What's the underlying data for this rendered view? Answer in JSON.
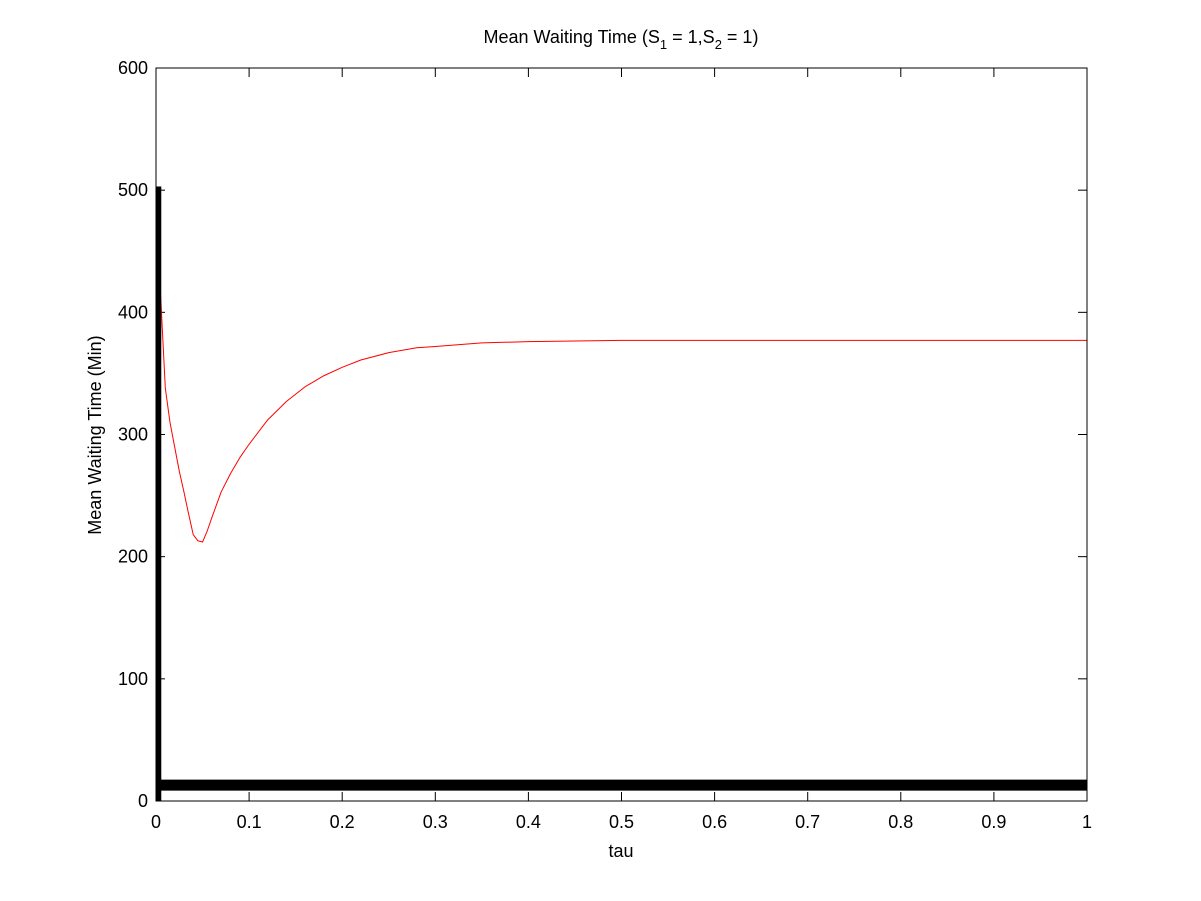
{
  "chart_data": {
    "type": "line",
    "title_parts": {
      "prefix": "Mean Waiting Time (S",
      "sub1": "1",
      "middle": " = 1,S",
      "sub2": "2",
      "suffix": " = 1)"
    },
    "xlabel": "tau",
    "ylabel": "Mean Waiting Time (Min)",
    "xlim": [
      0,
      1
    ],
    "ylim": [
      0,
      600
    ],
    "x_ticks": [
      "0",
      "0.1",
      "0.2",
      "0.3",
      "0.4",
      "0.5",
      "0.6",
      "0.7",
      "0.8",
      "0.9",
      "1"
    ],
    "y_ticks": [
      "0",
      "100",
      "200",
      "300",
      "400",
      "500",
      "600"
    ],
    "grid": false,
    "series": [
      {
        "color": "#ff0000",
        "x": [
          0.005,
          0.01,
          0.015,
          0.02,
          0.025,
          0.03,
          0.035,
          0.04,
          0.045,
          0.05,
          0.055,
          0.06,
          0.07,
          0.08,
          0.09,
          0.1,
          0.12,
          0.14,
          0.16,
          0.18,
          0.2,
          0.22,
          0.25,
          0.28,
          0.3,
          0.35,
          0.4,
          0.45,
          0.5,
          0.6,
          0.7,
          0.8,
          0.9,
          1.0
        ],
        "y": [
          413,
          338,
          310,
          290,
          270,
          253,
          235,
          218,
          213,
          212,
          221,
          232,
          253,
          268,
          281,
          292,
          312,
          327,
          339,
          348,
          355,
          361,
          367,
          371,
          372,
          375,
          376,
          376.5,
          377,
          377,
          377,
          377,
          377,
          377
        ]
      },
      {
        "color": "#000000",
        "x": [
          0,
          1
        ],
        "y": [
          13,
          13
        ]
      },
      {
        "color": "#000000",
        "x": [
          0.003,
          0.003
        ],
        "y": [
          0,
          503
        ]
      }
    ]
  }
}
